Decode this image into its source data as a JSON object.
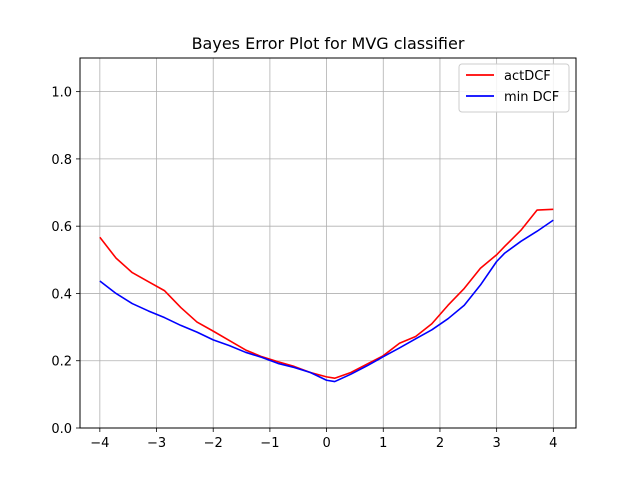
{
  "chart_data": {
    "type": "line",
    "title": "Bayes Error Plot for MVG classifier",
    "xlabel": "",
    "ylabel": "",
    "xlim": [
      -4.35,
      4.4
    ],
    "ylim": [
      0.0,
      1.1
    ],
    "xticks": [
      -4,
      -3,
      -2,
      -1,
      0,
      1,
      2,
      3,
      4
    ],
    "xtick_labels": [
      "−4",
      "−3",
      "−2",
      "−1",
      "0",
      "1",
      "2",
      "3",
      "4"
    ],
    "yticks": [
      0.0,
      0.2,
      0.4,
      0.6,
      0.8,
      1.0
    ],
    "ytick_labels": [
      "0.0",
      "0.2",
      "0.4",
      "0.6",
      "0.8",
      "1.0"
    ],
    "grid": true,
    "legend_position": "top-right",
    "x": [
      -4.0,
      -3.714,
      -3.429,
      -3.143,
      -2.857,
      -2.571,
      -2.286,
      -2.0,
      -1.714,
      -1.429,
      -1.143,
      -0.857,
      -0.571,
      -0.286,
      0.0,
      0.143,
      0.429,
      0.714,
      1.0,
      1.286,
      1.571,
      1.857,
      2.143,
      2.429,
      2.714,
      3.0,
      3.143,
      3.429,
      3.714,
      4.0
    ],
    "series": [
      {
        "name": "actDCF",
        "color": "#ff0000",
        "values": [
          0.567,
          0.505,
          0.462,
          0.435,
          0.408,
          0.358,
          0.315,
          0.288,
          0.26,
          0.232,
          0.212,
          0.197,
          0.183,
          0.165,
          0.152,
          0.148,
          0.165,
          0.19,
          0.215,
          0.252,
          0.272,
          0.31,
          0.365,
          0.415,
          0.475,
          0.515,
          0.54,
          0.588,
          0.648,
          0.65
        ],
        "label": "actDCF"
      },
      {
        "name": "min DCF",
        "color": "#0000ff",
        "values": [
          0.437,
          0.4,
          0.37,
          0.348,
          0.328,
          0.305,
          0.285,
          0.262,
          0.245,
          0.225,
          0.21,
          0.192,
          0.18,
          0.165,
          0.142,
          0.138,
          0.16,
          0.185,
          0.212,
          0.238,
          0.265,
          0.292,
          0.325,
          0.365,
          0.425,
          0.495,
          0.52,
          0.555,
          0.585,
          0.618
        ],
        "label": "min DCF"
      }
    ]
  }
}
